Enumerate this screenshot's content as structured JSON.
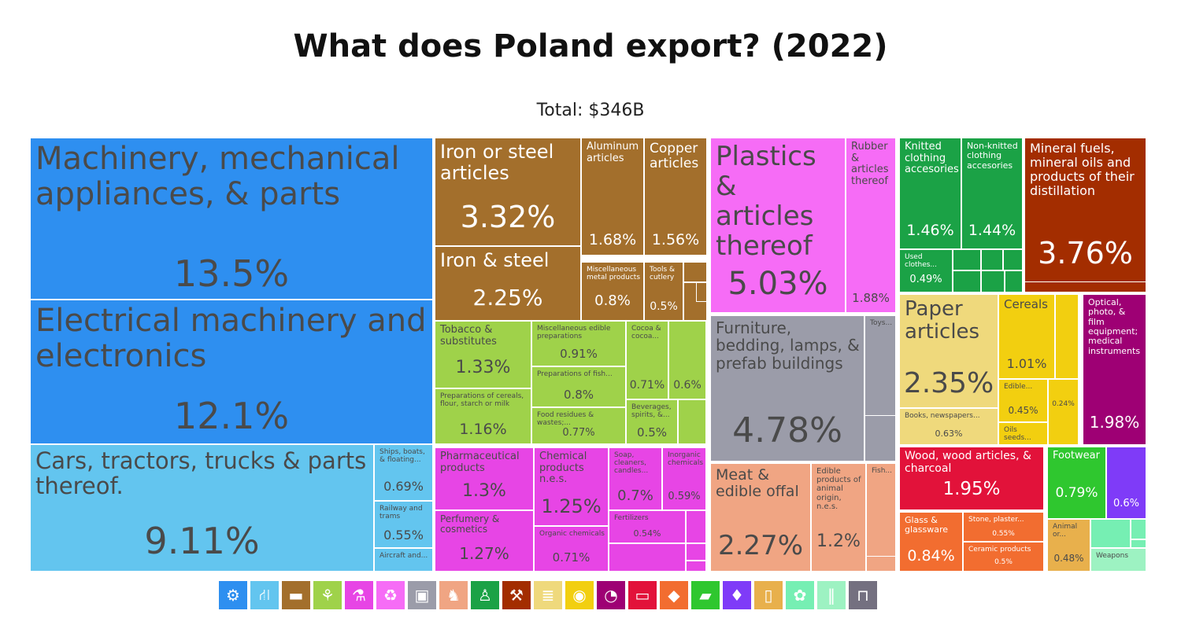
{
  "title": "What does Poland export? (2022)",
  "total": "Total: $346B",
  "colors": {
    "machinery": "#2e8ff0",
    "transport": "#63c5ef",
    "metals": "#a36f2c",
    "food": "#9fd24a",
    "chemicals": "#e745e5",
    "plastics": "#f66cf6",
    "furniture": "#9b9ca9",
    "animal": "#f0a583",
    "textiles": "#1ba246",
    "minerals": "#a32d00",
    "paper": "#efd97c",
    "vegetable": "#f2cf10",
    "instruments": "#9e0074",
    "wood": "#e2123a",
    "stone": "#f26d30",
    "footwear": "#2fc72f",
    "precious": "#7f3bf8",
    "foodsmall": "#e8b04c",
    "animalhides": "#76efb3",
    "weapons": "#9df2c2",
    "misc": "#747080"
  },
  "chart_data": {
    "type": "treemap",
    "title": "What does Poland export? (2022)",
    "subtitle": "Total: $346B",
    "unit": "% of total exports",
    "items": [
      {
        "label": "Machinery, mechanical appliances, & parts",
        "value": 13.5,
        "display": "13.5%",
        "category": "machinery"
      },
      {
        "label": "Electrical machinery and electronics",
        "value": 12.1,
        "display": "12.1%",
        "category": "machinery"
      },
      {
        "label": "Cars, tractors, trucks & parts thereof.",
        "value": 9.11,
        "display": "9.11%",
        "category": "transport"
      },
      {
        "label": "Ships, boats, & floating...",
        "value": 0.69,
        "display": "0.69%",
        "category": "transport"
      },
      {
        "label": "Railway and trams",
        "value": 0.55,
        "display": "0.55%",
        "category": "transport"
      },
      {
        "label": "Aircraft and...",
        "value": null,
        "display": "",
        "category": "transport"
      },
      {
        "label": "Iron or steel articles",
        "value": 3.32,
        "display": "3.32%",
        "category": "metals"
      },
      {
        "label": "Aluminum articles",
        "value": 1.68,
        "display": "1.68%",
        "category": "metals"
      },
      {
        "label": "Copper articles",
        "value": 1.56,
        "display": "1.56%",
        "category": "metals"
      },
      {
        "label": "Iron & steel",
        "value": 2.25,
        "display": "2.25%",
        "category": "metals"
      },
      {
        "label": "Miscellaneous metal products",
        "value": 0.8,
        "display": "0.8%",
        "category": "metals"
      },
      {
        "label": "Tools & cutlery",
        "value": 0.5,
        "display": "0.5%",
        "category": "metals"
      },
      {
        "label": "Tobacco & substitutes",
        "value": 1.33,
        "display": "1.33%",
        "category": "food"
      },
      {
        "label": "Miscellaneous edible preparations",
        "value": 0.91,
        "display": "0.91%",
        "category": "food"
      },
      {
        "label": "Cocoa & cocoa...",
        "value": 0.71,
        "display": "0.71%",
        "category": "food"
      },
      {
        "label": "",
        "value": 0.6,
        "display": "0.6%",
        "category": "food"
      },
      {
        "label": "Preparations of fish...",
        "value": 0.8,
        "display": "0.8%",
        "category": "food"
      },
      {
        "label": "Preparations of cereals, flour, starch or milk",
        "value": 1.16,
        "display": "1.16%",
        "category": "food"
      },
      {
        "label": "Food residues & wastes;...",
        "value": 0.77,
        "display": "0.77%",
        "category": "food"
      },
      {
        "label": "Beverages, spirits, &...",
        "value": 0.5,
        "display": "0.5%",
        "category": "food"
      },
      {
        "label": "Pharmaceutical products",
        "value": 1.3,
        "display": "1.3%",
        "category": "chemicals"
      },
      {
        "label": "Chemical products n.e.s.",
        "value": 1.25,
        "display": "1.25%",
        "category": "chemicals"
      },
      {
        "label": "Soap, cleaners, candles...",
        "value": 0.7,
        "display": "0.7%",
        "category": "chemicals"
      },
      {
        "label": "Inorganic chemicals",
        "value": 0.59,
        "display": "0.59%",
        "category": "chemicals"
      },
      {
        "label": "Perfumery & cosmetics",
        "value": 1.27,
        "display": "1.27%",
        "category": "chemicals"
      },
      {
        "label": "Fertilizers",
        "value": 0.54,
        "display": "0.54%",
        "category": "chemicals"
      },
      {
        "label": "Organic chemicals",
        "value": 0.71,
        "display": "0.71%",
        "category": "chemicals"
      },
      {
        "label": "Plastics & articles thereof",
        "value": 5.03,
        "display": "5.03%",
        "category": "plastics"
      },
      {
        "label": "Rubber & articles thereof",
        "value": 1.88,
        "display": "1.88%",
        "category": "plastics"
      },
      {
        "label": "Furniture, bedding, lamps, & prefab buildings",
        "value": 4.78,
        "display": "4.78%",
        "category": "furniture"
      },
      {
        "label": "Toys...",
        "value": 0.8,
        "display": "0.8%",
        "category": "furniture"
      },
      {
        "label": "Meat & edible offal",
        "value": 2.27,
        "display": "2.27%",
        "category": "animal"
      },
      {
        "label": "Edible products of animal origin, n.e.s.",
        "value": 1.2,
        "display": "1.2%",
        "category": "animal"
      },
      {
        "label": "Fish...",
        "value": null,
        "display": "",
        "category": "animal"
      },
      {
        "label": "Knitted clothing accesories",
        "value": 1.46,
        "display": "1.46%",
        "category": "textiles"
      },
      {
        "label": "Non-knitted clothing accesories",
        "value": 1.44,
        "display": "1.44%",
        "category": "textiles"
      },
      {
        "label": "Used clothes...",
        "value": 0.49,
        "display": "0.49%",
        "category": "textiles"
      },
      {
        "label": "Mineral fuels, mineral oils and products of their distillation",
        "value": 3.76,
        "display": "3.76%",
        "category": "minerals"
      },
      {
        "label": "Paper articles",
        "value": 2.35,
        "display": "2.35%",
        "category": "paper"
      },
      {
        "label": "Books, newspapers...",
        "value": 0.63,
        "display": "0.63%",
        "category": "paper"
      },
      {
        "label": "Cereals",
        "value": 1.01,
        "display": "1.01%",
        "category": "vegetable"
      },
      {
        "label": "Edible...",
        "value": 0.45,
        "display": "0.45%",
        "category": "vegetable"
      },
      {
        "label": "",
        "value": 0.24,
        "display": "0.24%",
        "category": "vegetable"
      },
      {
        "label": "Oils seeds...",
        "value": null,
        "display": "",
        "category": "vegetable"
      },
      {
        "label": "Optical, photo, & film equipment; medical instruments",
        "value": 1.98,
        "display": "1.98%",
        "category": "instruments"
      },
      {
        "label": "Wood, wood articles, & charcoal",
        "value": 1.95,
        "display": "1.95%",
        "category": "wood"
      },
      {
        "label": "Footwear",
        "value": 0.79,
        "display": "0.79%",
        "category": "footwear"
      },
      {
        "label": "",
        "value": 0.6,
        "display": "0.6%",
        "category": "precious"
      },
      {
        "label": "Glass & glassware",
        "value": 0.84,
        "display": "0.84%",
        "category": "stone"
      },
      {
        "label": "Stone, plaster...",
        "value": 0.55,
        "display": "0.55%",
        "category": "stone"
      },
      {
        "label": "Ceramic products",
        "value": 0.5,
        "display": "0.5%",
        "category": "stone"
      },
      {
        "label": "Animal or...",
        "value": 0.48,
        "display": "0.48%",
        "category": "foodsmall"
      },
      {
        "label": "Weapons",
        "value": null,
        "display": "",
        "category": "weapons"
      }
    ],
    "legend": [
      {
        "category": "machinery",
        "icon": "gear-icon",
        "glyph": "⚙"
      },
      {
        "category": "transport",
        "icon": "road-icon",
        "glyph": "⛙"
      },
      {
        "category": "metals",
        "icon": "anvil-icon",
        "glyph": "▬"
      },
      {
        "category": "food",
        "icon": "wheat-icon",
        "glyph": "⚘"
      },
      {
        "category": "chemicals",
        "icon": "flask-icon",
        "glyph": "⚗"
      },
      {
        "category": "plastics",
        "icon": "recycle-icon",
        "glyph": "♻"
      },
      {
        "category": "furniture",
        "icon": "box-icon",
        "glyph": "▣"
      },
      {
        "category": "animal",
        "icon": "pig-icon",
        "glyph": "♞"
      },
      {
        "category": "textiles",
        "icon": "shirt-icon",
        "glyph": "♙"
      },
      {
        "category": "minerals",
        "icon": "pickaxe-icon",
        "glyph": "⚒"
      },
      {
        "category": "paper",
        "icon": "scroll-icon",
        "glyph": "≣"
      },
      {
        "category": "vegetable",
        "icon": "fruit-icon",
        "glyph": "◉"
      },
      {
        "category": "instruments",
        "icon": "gauge-icon",
        "glyph": "◔"
      },
      {
        "category": "wood",
        "icon": "log-icon",
        "glyph": "▭"
      },
      {
        "category": "stone",
        "icon": "stone-icon",
        "glyph": "◆"
      },
      {
        "category": "footwear",
        "icon": "shoe-icon",
        "glyph": "▰"
      },
      {
        "category": "precious",
        "icon": "diamond-icon",
        "glyph": "♦"
      },
      {
        "category": "foodsmall",
        "icon": "jar-icon",
        "glyph": "▯"
      },
      {
        "category": "animalhides",
        "icon": "hide-icon",
        "glyph": "✿"
      },
      {
        "category": "weapons",
        "icon": "bullets-icon",
        "glyph": "‖"
      },
      {
        "category": "misc",
        "icon": "easel-icon",
        "glyph": "⊓"
      }
    ]
  }
}
